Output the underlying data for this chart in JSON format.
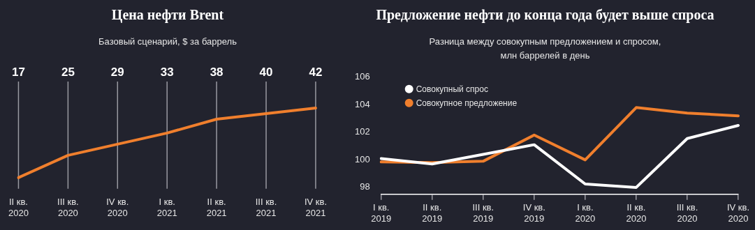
{
  "chart_data": [
    {
      "type": "line",
      "title": "Цена нефти Brent",
      "subtitle": "Базовый сценарий, $ за баррель",
      "categories": [
        "II кв. 2020",
        "III кв. 2020",
        "IV кв. 2020",
        "I кв. 2021",
        "II кв. 2021",
        "III кв. 2021",
        "IV кв. 2021"
      ],
      "series": [
        {
          "color": "#f07f2d",
          "values": [
            17,
            25,
            29,
            33,
            38,
            40,
            42
          ]
        }
      ],
      "data_labels": true,
      "grid": "x",
      "legend": false,
      "tick_labels": "x",
      "marker": "none"
    },
    {
      "type": "line",
      "title": "Предложение нефти до конца года будет выше спроса",
      "subtitle": "Разница между совокупным предложением и спросом,\nмлн баррелей в день",
      "categories": [
        "I кв. 2019",
        "II кв. 2019",
        "III кв. 2019",
        "IV кв. 2019",
        "I кв. 2020",
        "II кв. 2020",
        "III кв. 2020",
        "IV кв. 2020"
      ],
      "series": [
        {
          "name": "Совокупный спрос",
          "color": "#ffffff",
          "values": [
            100.1,
            99.7,
            100.4,
            101.1,
            98.25,
            98.0,
            101.55,
            102.5
          ]
        },
        {
          "name": "Совокупное предложение",
          "color": "#f07f2d",
          "values": [
            99.85,
            99.8,
            99.9,
            101.8,
            100.0,
            103.8,
            103.4,
            103.2
          ]
        }
      ],
      "ylim": [
        97.5,
        106
      ],
      "yticks": [
        98,
        100,
        102,
        104,
        106
      ],
      "grid": false,
      "legend": "top left",
      "marker": "none"
    }
  ]
}
